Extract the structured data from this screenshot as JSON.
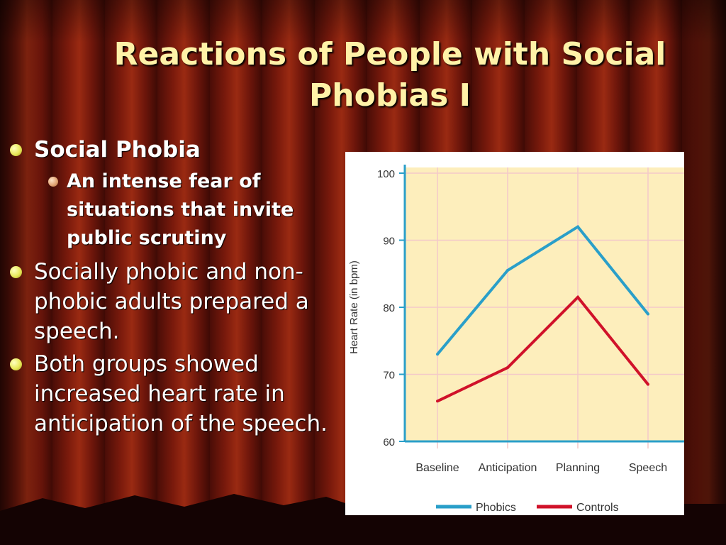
{
  "slide": {
    "title": "Reactions of People with Social Phobias I",
    "bullets": [
      {
        "text": "Social Phobia",
        "bold": true,
        "sub": [
          "An intense fear of situations that invite public scrutiny"
        ]
      },
      {
        "text": "Socially phobic and non-phobic adults prepared a speech.",
        "bold": false,
        "sub": []
      },
      {
        "text": "Both groups showed increased heart rate in anticipation of the speech.",
        "bold": false,
        "sub": []
      }
    ],
    "colors": {
      "title": "#fff2a8",
      "bullet_dot": "#e8e85a",
      "sub_bullet_dot": "#e0a070"
    }
  },
  "chart_data": {
    "type": "line",
    "categories": [
      "Baseline",
      "Anticipation",
      "Planning",
      "Speech"
    ],
    "series": [
      {
        "name": "Phobics",
        "values": [
          73,
          85.5,
          92,
          79
        ],
        "color": "#2a9fc9"
      },
      {
        "name": "Controls",
        "values": [
          66,
          71,
          81.5,
          68.5
        ],
        "color": "#d0122a"
      }
    ],
    "title": "",
    "xlabel": "",
    "ylabel": "Heart Rate (in bpm)",
    "ylim": [
      60,
      100
    ],
    "yticks": [
      60,
      70,
      80,
      90,
      100
    ],
    "grid": true,
    "legend": "bottom",
    "colors": {
      "plot_background": "#fdeebc",
      "grid": "#f3c9c9",
      "axis": "#2a9fc9"
    }
  }
}
